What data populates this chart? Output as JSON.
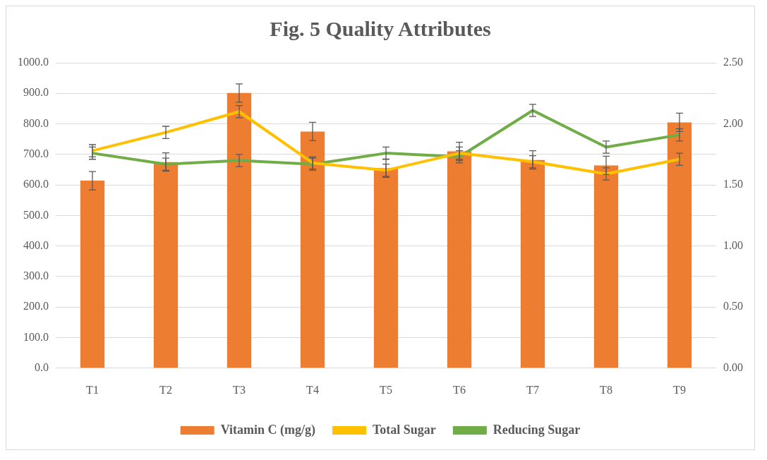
{
  "chart_data": {
    "type": "bar",
    "title": "Fig. 5 Quality Attributes",
    "categories": [
      "T1",
      "T2",
      "T3",
      "T4",
      "T5",
      "T6",
      "T7",
      "T8",
      "T9"
    ],
    "series": [
      {
        "name": "Vitamin C (mg/g)",
        "color": "#ed7d31",
        "values": [
          614,
          675,
          901,
          775,
          655,
          710,
          682,
          664,
          805
        ],
        "errors": [
          30,
          30,
          30,
          30,
          30,
          30,
          30,
          30,
          30
        ]
      },
      {
        "name": "Total Sugar",
        "type": "line",
        "axis": "y2",
        "color": "#ffc000",
        "values": [
          1.78,
          1.93,
          2.1,
          1.68,
          1.62,
          1.76,
          1.69,
          1.59,
          1.71
        ],
        "errors": [
          0.05,
          0.05,
          0.05,
          0.05,
          0.05,
          0.05,
          0.05,
          0.05,
          0.05
        ]
      },
      {
        "name": "Reducing Sugar",
        "type": "line",
        "axis": "y2",
        "color": "#70ad47",
        "values": [
          1.76,
          1.67,
          1.7,
          1.67,
          1.76,
          1.73,
          2.11,
          1.81,
          1.91
        ],
        "errors": [
          0.05,
          0.05,
          0.05,
          0.05,
          0.05,
          0.05,
          0.05,
          0.05,
          0.05
        ]
      }
    ],
    "ylim": [
      0,
      1000
    ],
    "yticks": [
      {
        "value": 0,
        "label": "0.0"
      },
      {
        "value": 100,
        "label": "100.0"
      },
      {
        "value": 200,
        "label": "200.0"
      },
      {
        "value": 300,
        "label": "300.0"
      },
      {
        "value": 400,
        "label": "400.0"
      },
      {
        "value": 500,
        "label": "500.0"
      },
      {
        "value": 600,
        "label": "600.0"
      },
      {
        "value": 700,
        "label": "700.0"
      },
      {
        "value": 800,
        "label": "800.0"
      },
      {
        "value": 900,
        "label": "900.0"
      },
      {
        "value": 1000,
        "label": "1000.0"
      }
    ],
    "y2lim": [
      0,
      2.5
    ],
    "y2ticks": [
      {
        "value": 0,
        "label": "0.00"
      },
      {
        "value": 0.5,
        "label": "0.50"
      },
      {
        "value": 1,
        "label": "1.00"
      },
      {
        "value": 1.5,
        "label": "1.50"
      },
      {
        "value": 2,
        "label": "2.00"
      },
      {
        "value": 2.5,
        "label": "2.50"
      }
    ],
    "grid": "y",
    "legend": "bottom",
    "marker": "none",
    "line_style": "solid"
  }
}
